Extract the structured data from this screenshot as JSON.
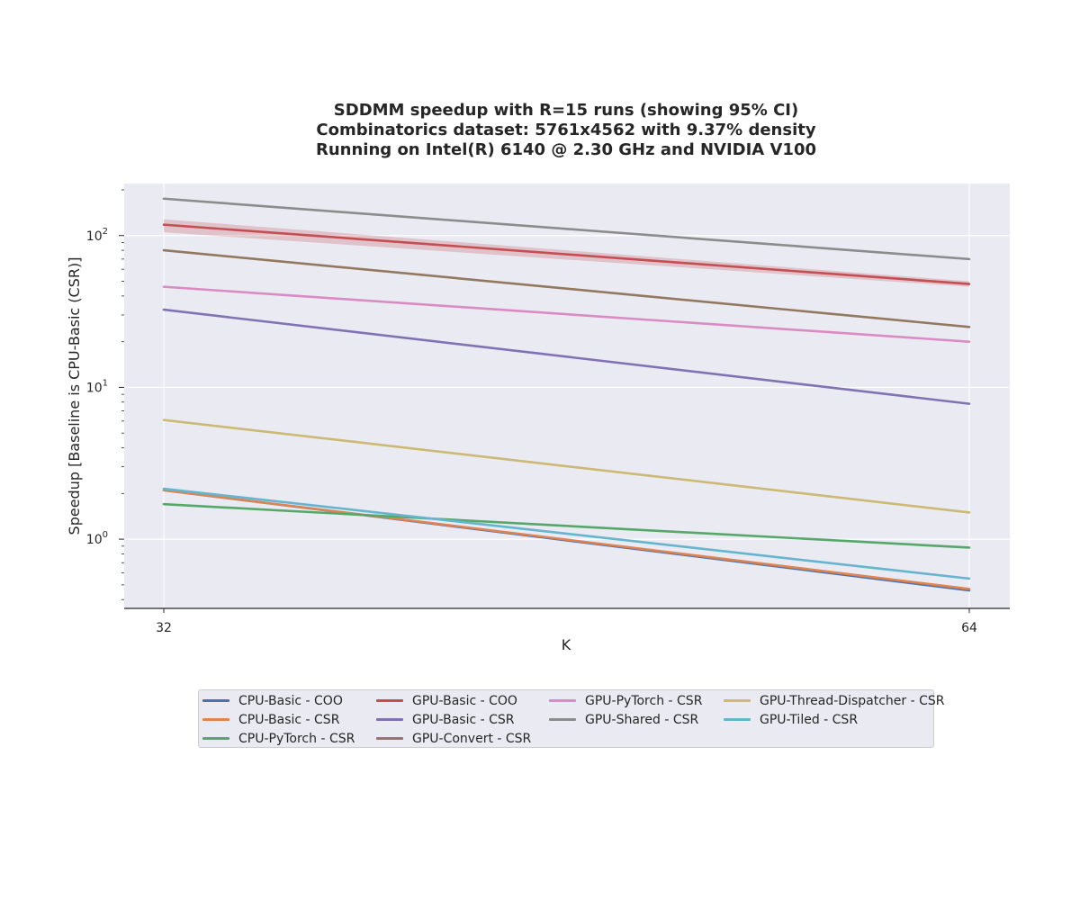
{
  "chart_data": {
    "type": "line",
    "title_lines": [
      "SDDMM speedup with R=15 runs (showing 95% CI)",
      "Combinatorics dataset: 5761x4562 with 9.37% density",
      "Running on Intel(R) 6140 @ 2.30 GHz and NVIDIA V100"
    ],
    "xlabel": "K",
    "ylabel": "Speedup [Baseline is CPU-Basic (CSR)]",
    "x": [
      32,
      64
    ],
    "x_ticks": [
      "32",
      "64"
    ],
    "y_scale": "log",
    "ylim": [
      0.35,
      220
    ],
    "y_ticks": [
      {
        "base": "10",
        "exp": "0",
        "value": 1
      },
      {
        "base": "10",
        "exp": "1",
        "value": 10
      },
      {
        "base": "10",
        "exp": "2",
        "value": 100
      }
    ],
    "grid": true,
    "legend_position": "bottom",
    "series": [
      {
        "name": "CPU-Basic - COO",
        "color": "#4c72b0",
        "values": [
          2.1,
          0.46
        ]
      },
      {
        "name": "CPU-Basic - CSR",
        "color": "#dd8452",
        "values": [
          2.1,
          0.47
        ]
      },
      {
        "name": "CPU-PyTorch - CSR",
        "color": "#55a868",
        "values": [
          1.7,
          0.88
        ]
      },
      {
        "name": "GPU-Basic - COO",
        "color": "#c44e52",
        "values": [
          118,
          48
        ],
        "ci_low": [
          105,
          46
        ],
        "ci_high": [
          128,
          50
        ]
      },
      {
        "name": "GPU-Basic - CSR",
        "color": "#8172b3",
        "values": [
          32.5,
          7.8
        ]
      },
      {
        "name": "GPU-Convert - CSR",
        "color": "#937860",
        "values": [
          80,
          25
        ]
      },
      {
        "name": "GPU-PyTorch - CSR",
        "color": "#da8bc3",
        "values": [
          46,
          20
        ]
      },
      {
        "name": "GPU-Shared - CSR",
        "color": "#8c8c8c",
        "values": [
          175,
          70
        ]
      },
      {
        "name": "GPU-Thread-Dispatcher - CSR",
        "color": "#ccb974",
        "values": [
          6.1,
          1.5
        ]
      },
      {
        "name": "GPU-Tiled - CSR",
        "color": "#64b5cd",
        "values": [
          2.15,
          0.55
        ]
      }
    ]
  }
}
